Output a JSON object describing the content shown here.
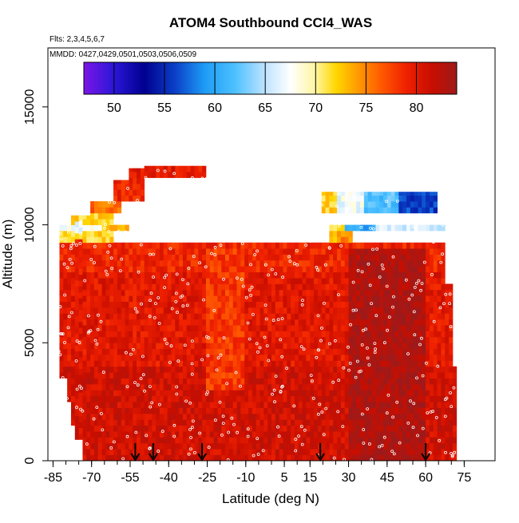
{
  "chart_data": {
    "type": "heatmap",
    "title": "ATOM4 Southbound CCl4_WAS",
    "subtitle_flights": "Flts: 2,3,4,5,6,7",
    "subtitle_dates": "MMDD: 0427,0429,0501,0503,0506,0509",
    "xlabel": "Latitude (deg N)",
    "ylabel": "Altitude (m)",
    "xlim": [
      -87,
      87
    ],
    "ylim": [
      0,
      17500
    ],
    "x_ticks": [
      -85,
      -70,
      -55,
      -40,
      -25,
      -10,
      5,
      15,
      30,
      45,
      60,
      75
    ],
    "x_tick_labels": [
      "-85",
      "-70",
      "-55",
      "-40",
      "-25",
      "-10",
      "5",
      "15",
      "30",
      "45",
      "60",
      "75"
    ],
    "y_ticks": [
      0,
      5000,
      10000,
      15000
    ],
    "y_tick_labels": [
      "0",
      "5000",
      "10000",
      "15000"
    ],
    "colorbar": {
      "min": 47,
      "max": 84,
      "ticks": [
        50,
        55,
        60,
        65,
        70,
        75,
        80
      ],
      "tick_labels": [
        "50",
        "55",
        "60",
        "65",
        "70",
        "75",
        "80"
      ],
      "stops": [
        {
          "v": 47,
          "color": "#7b16e6"
        },
        {
          "v": 50,
          "color": "#2a16d8"
        },
        {
          "v": 53,
          "color": "#00008f"
        },
        {
          "v": 56,
          "color": "#0a3ec6"
        },
        {
          "v": 59,
          "color": "#1e9cf6"
        },
        {
          "v": 62,
          "color": "#4dc1ff"
        },
        {
          "v": 65,
          "color": "#bfe3ff"
        },
        {
          "v": 67.5,
          "color": "#ffffff"
        },
        {
          "v": 70,
          "color": "#fff5a0"
        },
        {
          "v": 72,
          "color": "#ffd700"
        },
        {
          "v": 74,
          "color": "#ffa000"
        },
        {
          "v": 76.5,
          "color": "#ff5a00"
        },
        {
          "v": 79,
          "color": "#f02000"
        },
        {
          "v": 81.5,
          "color": "#c80e00"
        },
        {
          "v": 84,
          "color": "#9e1a1a"
        }
      ]
    },
    "columns": [
      {
        "lat_min": -83,
        "lat_max": -80,
        "alt_max": 10000
      },
      {
        "lat_min": -80,
        "lat_max": -76,
        "alt_max": 10400
      },
      {
        "lat_min": -76,
        "lat_max": -70,
        "alt_max": 10400
      },
      {
        "lat_min": -70,
        "lat_max": -62,
        "alt_max": 11000
      },
      {
        "lat_min": -62,
        "lat_max": -56,
        "alt_max": 11900
      },
      {
        "lat_min": -56,
        "lat_max": -50,
        "alt_max": 12400
      },
      {
        "lat_min": -50,
        "lat_max": -25,
        "alt_max": 12500
      },
      {
        "lat_min": -25,
        "lat_max": -20,
        "alt_max": 12000
      },
      {
        "lat_min": -20,
        "lat_max": 20,
        "alt_max": 11900
      },
      {
        "lat_min": 20,
        "lat_max": 60,
        "alt_max": 11400
      },
      {
        "lat_min": 60,
        "lat_max": 64,
        "alt_max": 11400
      },
      {
        "lat_min": 64,
        "lat_max": 68,
        "alt_max": 10000
      },
      {
        "lat_min": 68,
        "lat_max": 70,
        "alt_max": 7500
      },
      {
        "lat_min": 70,
        "lat_max": 72,
        "alt_max": 4000
      }
    ],
    "column_floors": [
      {
        "lat_min": -83,
        "lat_max": -80,
        "alt_min": 3500
      },
      {
        "lat_min": -80,
        "lat_max": -78,
        "alt_min": 2500
      },
      {
        "lat_min": -78,
        "lat_max": -76,
        "alt_min": 1500
      },
      {
        "lat_min": -76,
        "lat_max": -73,
        "alt_min": 900
      },
      {
        "lat_min": -73,
        "lat_max": 72,
        "alt_min": 0
      }
    ],
    "bands": [
      {
        "alt_min": 0,
        "alt_max": 4000,
        "lat_min": -83,
        "lat_max": 72,
        "value": 81
      },
      {
        "alt_min": 4000,
        "alt_max": 8000,
        "lat_min": -83,
        "lat_max": 72,
        "value": 80
      },
      {
        "alt_min": 8000,
        "alt_max": 9300,
        "lat_min": -83,
        "lat_max": 72,
        "value": 79
      },
      {
        "alt_min": 9300,
        "alt_max": 9700,
        "lat_min": -83,
        "lat_max": -62,
        "value": 72
      },
      {
        "alt_min": 9700,
        "alt_max": 10100,
        "lat_min": -83,
        "lat_max": -66,
        "value": 67
      },
      {
        "alt_min": 9700,
        "alt_max": 10100,
        "lat_min": -66,
        "lat_max": -55,
        "value": 73
      },
      {
        "alt_min": 10100,
        "alt_max": 10500,
        "lat_min": -78,
        "lat_max": -62,
        "value": 72
      },
      {
        "alt_min": 10500,
        "alt_max": 11000,
        "lat_min": -70,
        "lat_max": -58,
        "value": 76
      },
      {
        "alt_min": 11000,
        "alt_max": 11900,
        "lat_min": -62,
        "lat_max": -50,
        "value": 79
      },
      {
        "alt_min": 11900,
        "alt_max": 12500,
        "lat_min": -56,
        "lat_max": -25,
        "value": 80
      },
      {
        "alt_min": 10500,
        "alt_max": 11900,
        "lat_min": 20,
        "lat_max": 26,
        "value": 72
      },
      {
        "alt_min": 10500,
        "alt_max": 11400,
        "lat_min": 26,
        "lat_max": 36,
        "value": 67
      },
      {
        "alt_min": 10500,
        "alt_max": 11400,
        "lat_min": 36,
        "lat_max": 50,
        "value": 62
      },
      {
        "alt_min": 10500,
        "alt_max": 11400,
        "lat_min": 50,
        "lat_max": 66,
        "value": 56
      },
      {
        "alt_min": 9300,
        "alt_max": 10100,
        "lat_min": 22,
        "lat_max": 28,
        "value": 72
      },
      {
        "alt_min": 9700,
        "alt_max": 10100,
        "lat_min": 28,
        "lat_max": 40,
        "value": 60
      },
      {
        "alt_min": 9700,
        "alt_max": 10100,
        "lat_min": 40,
        "lat_max": 68,
        "value": 66
      },
      {
        "alt_min": 9300,
        "alt_max": 9700,
        "lat_min": 26,
        "lat_max": 32,
        "value": 75
      },
      {
        "alt_min": 3000,
        "alt_max": 9000,
        "lat_min": -25,
        "lat_max": -10,
        "value": 78
      },
      {
        "alt_min": 0,
        "alt_max": 9000,
        "lat_min": 30,
        "lat_max": 60,
        "value": 83
      }
    ],
    "sampling_dots_note": "white open circles mark WAS sample locations",
    "arrow_latitudes": [
      -53,
      -46,
      -27,
      19,
      60
    ]
  }
}
